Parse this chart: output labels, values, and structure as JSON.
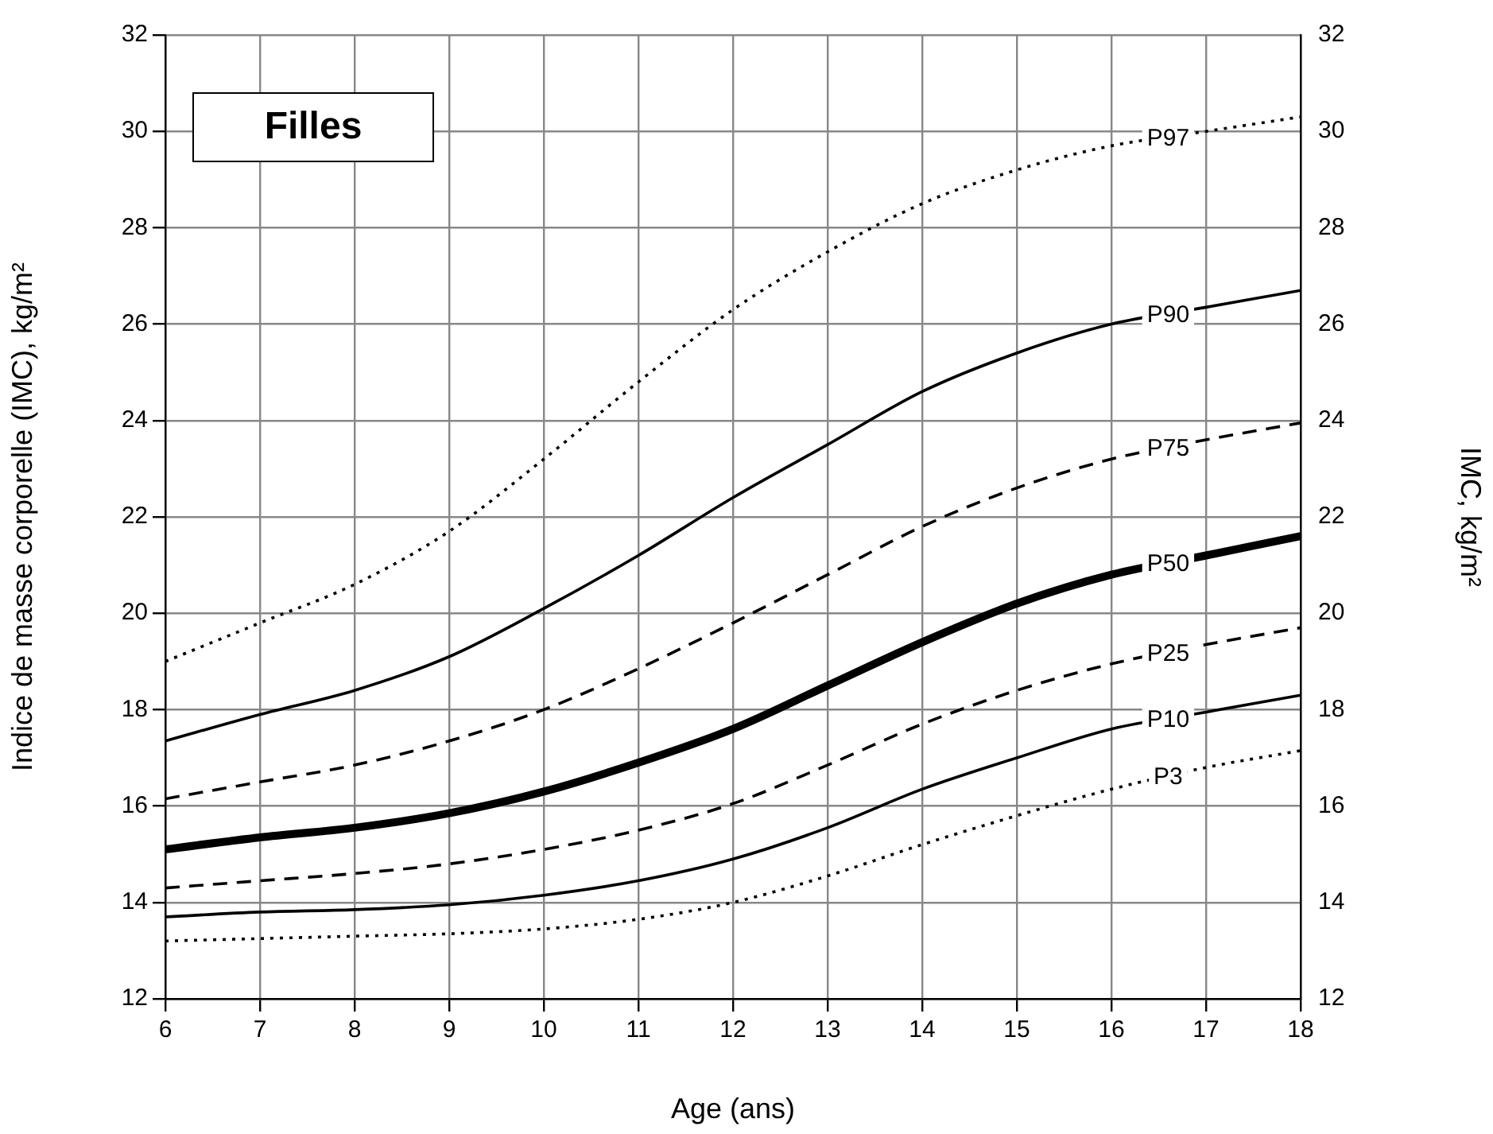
{
  "chart_data": {
    "type": "line",
    "title": "Filles",
    "xlabel": "Age (ans)",
    "ylabel": "Indice de masse corporelle (IMC), kg/m²",
    "y2label": "IMC, kg/m²",
    "x": [
      6,
      7,
      8,
      9,
      10,
      11,
      12,
      13,
      14,
      15,
      16,
      17,
      18
    ],
    "xlim": [
      6,
      18
    ],
    "xticks": [
      6,
      7,
      8,
      9,
      10,
      11,
      12,
      13,
      14,
      15,
      16,
      17,
      18
    ],
    "ylim": [
      12,
      32
    ],
    "yticks": [
      12,
      14,
      16,
      18,
      20,
      22,
      24,
      26,
      28,
      30,
      32
    ],
    "y2lim": [
      12,
      32
    ],
    "y2ticks": [
      12,
      14,
      16,
      18,
      20,
      22,
      24,
      26,
      28,
      30,
      32
    ],
    "grid": true,
    "legend": false,
    "marker": "none",
    "series": [
      {
        "name": "P97",
        "color": "#000000",
        "line_style": "dotted",
        "values": [
          19.0,
          19.8,
          20.6,
          21.7,
          23.2,
          24.8,
          26.3,
          27.5,
          28.5,
          29.2,
          29.7,
          30.0,
          30.3
        ]
      },
      {
        "name": "P90",
        "color": "#000000",
        "line_style": "solid",
        "values": [
          17.35,
          17.9,
          18.4,
          19.1,
          20.1,
          21.2,
          22.4,
          23.5,
          24.6,
          25.4,
          26.0,
          26.35,
          26.7
        ]
      },
      {
        "name": "P75",
        "color": "#000000",
        "line_style": "dashed",
        "values": [
          16.15,
          16.5,
          16.85,
          17.35,
          18.0,
          18.85,
          19.8,
          20.8,
          21.8,
          22.6,
          23.2,
          23.6,
          23.95
        ]
      },
      {
        "name": "P50",
        "color": "#000000",
        "line_style": "solid",
        "values": [
          15.1,
          15.35,
          15.55,
          15.85,
          16.3,
          16.9,
          17.6,
          18.5,
          19.4,
          20.2,
          20.8,
          21.2,
          21.6
        ]
      },
      {
        "name": "P25",
        "color": "#000000",
        "line_style": "dashed",
        "values": [
          14.3,
          14.45,
          14.6,
          14.8,
          15.1,
          15.5,
          16.05,
          16.85,
          17.7,
          18.4,
          18.95,
          19.35,
          19.7
        ]
      },
      {
        "name": "P10",
        "color": "#000000",
        "line_style": "solid",
        "values": [
          13.7,
          13.8,
          13.85,
          13.95,
          14.15,
          14.45,
          14.9,
          15.55,
          16.35,
          17.0,
          17.6,
          17.95,
          18.3
        ]
      },
      {
        "name": "P3",
        "color": "#000000",
        "line_style": "dotted",
        "values": [
          13.2,
          13.25,
          13.3,
          13.35,
          13.45,
          13.65,
          14.0,
          14.55,
          15.2,
          15.8,
          16.35,
          16.8,
          17.15
        ]
      }
    ]
  }
}
